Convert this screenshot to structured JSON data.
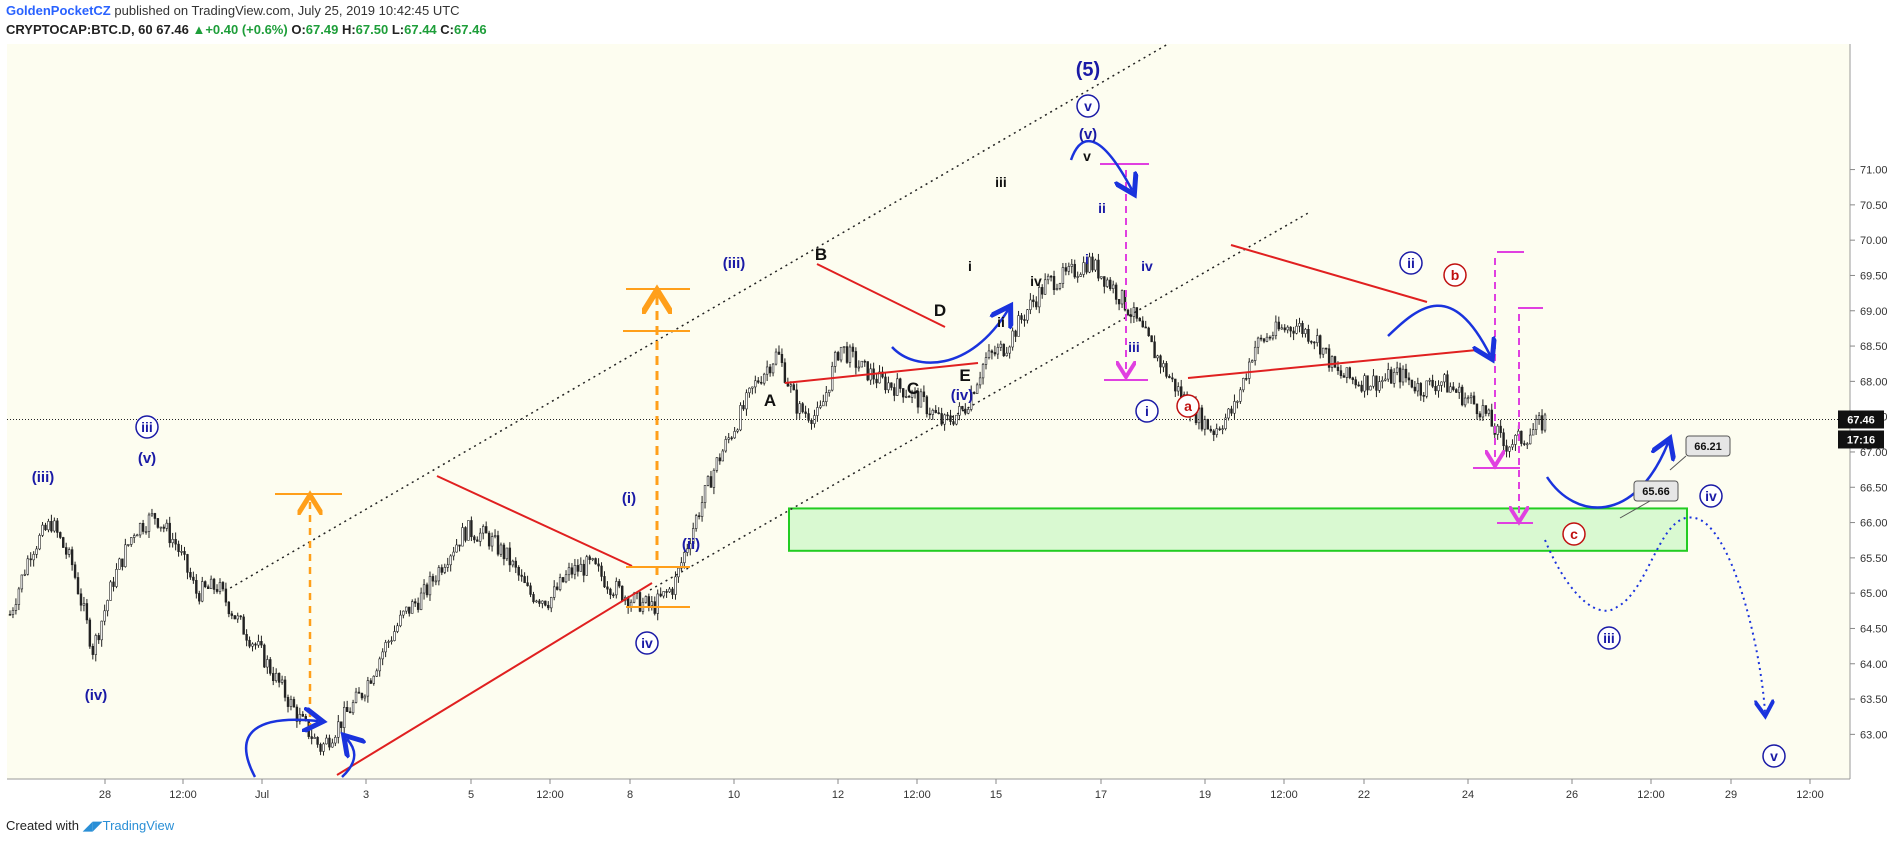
{
  "header": {
    "author": "GoldenPocketCZ",
    "published": "published on TradingView.com, July 25, 2019 10:42:45 UTC",
    "symbol": "CRYPTOCAP:BTC.D, 60",
    "last": "67.46",
    "change": "+0.40 (+0.6%)",
    "open_label": "O:",
    "open": "67.49",
    "high_label": "H:",
    "high": "67.50",
    "low_label": "L:",
    "low": "67.44",
    "close_label": "C:",
    "close": "67.46"
  },
  "footer": {
    "created_with": "Created with",
    "brand": "TradingView"
  },
  "colors": {
    "background": "#fdfdf0",
    "candle": "#222222",
    "wave_label": "#1a1aa6",
    "trendline": "#e02020",
    "projection": "#ff9f1a",
    "target_arrow": "#e040e0",
    "zone_fill": "#d9f9d1",
    "zone_border": "#22cc22",
    "forecast": "#1a33dd",
    "price_tag": "#111111"
  },
  "price_tags": {
    "current": "67.46",
    "countdown": "17:16"
  },
  "chart_data": {
    "type": "candlestick",
    "instrument": "CRYPTOCAP:BTC.D",
    "timeframe": "60",
    "ylim": [
      62.6,
      71.3
    ],
    "y_ticks": [
      "71.00",
      "70.50",
      "70.00",
      "69.50",
      "69.00",
      "68.50",
      "68.00",
      "67.50",
      "67.00",
      "66.50",
      "66.00",
      "65.50",
      "65.00",
      "64.50",
      "64.00",
      "63.50",
      "63.00"
    ],
    "x_ticks": [
      "28",
      "12:00",
      "Jul",
      "3",
      "5",
      "12:00",
      "8",
      "10",
      "12",
      "12:00",
      "15",
      "17",
      "19",
      "12:00",
      "22",
      "24",
      "26",
      "12:00",
      "29",
      "12:00"
    ],
    "price_path": [
      64.7,
      65.6,
      66.0,
      65.4,
      64.2,
      65.2,
      65.9,
      66.1,
      65.7,
      65.0,
      65.1,
      64.6,
      64.2,
      63.7,
      63.2,
      62.8,
      63.2,
      63.6,
      64.2,
      64.7,
      65.0,
      65.5,
      65.9,
      65.8,
      65.5,
      65.0,
      64.9,
      65.3,
      65.4,
      65.1,
      64.9,
      64.8,
      65.1,
      66.0,
      66.8,
      67.4,
      68.0,
      68.4,
      67.6,
      67.5,
      68.5,
      68.2,
      68.0,
      67.9,
      67.7,
      67.4,
      67.6,
      68.3,
      68.5,
      69.0,
      69.4,
      69.5,
      69.7,
      69.4,
      69.0,
      68.5,
      68.0,
      67.6,
      67.3,
      67.6,
      68.5,
      68.7,
      68.8,
      68.6,
      68.1,
      68.0,
      68.0,
      68.1,
      67.9,
      68.0,
      67.8,
      67.6,
      67.1,
      67.2,
      67.45
    ],
    "zone": [
      65.6,
      66.2
    ],
    "annotations": {
      "top_label": "(5)",
      "black_labels": [
        "A",
        "B",
        "C",
        "D",
        "E",
        "i",
        "ii",
        "iii",
        "iv",
        "v"
      ],
      "blue_labels": [
        "(iii)",
        "(iv)",
        "iii",
        "(v)",
        "(i)",
        "(ii)",
        "iv",
        "(iii)",
        "(iv)",
        "(v)",
        "v",
        "i",
        "ii",
        "iv",
        "iii",
        "i",
        "ii",
        "iii",
        "iv",
        "v"
      ],
      "red_labels": [
        "a",
        "b",
        "c"
      ],
      "price_callouts": [
        "66.21",
        "65.66"
      ]
    }
  }
}
